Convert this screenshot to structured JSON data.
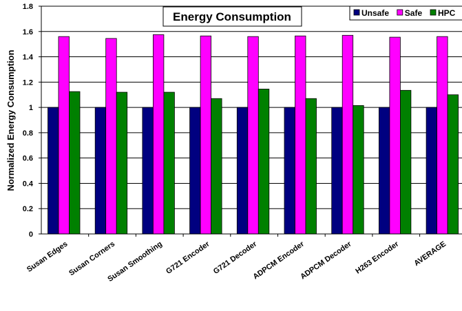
{
  "chart_data": {
    "type": "bar",
    "title": "Energy Consumption",
    "xlabel": "",
    "ylabel": "Normalized Energy Consumption",
    "ylim": [
      0,
      1.8
    ],
    "yticks": [
      "0",
      "0.2",
      "0.4",
      "0.6",
      "0.8",
      "1",
      "1.2",
      "1.4",
      "1.6",
      "1.8"
    ],
    "grid": true,
    "legend_position": "top-right",
    "categories": [
      "Susan Edges",
      "Susan Corners",
      "Susan Smoothing",
      "G721 Encoder",
      "G721 Decoder",
      "ADPCM Encoder",
      "ADPCM Decoder",
      "H263 Encoder",
      "AVERAGE"
    ],
    "series": [
      {
        "name": "Unsafe",
        "color": "#000080",
        "values": [
          1,
          1,
          1,
          1,
          1,
          1,
          1,
          1,
          1
        ]
      },
      {
        "name": "Safe",
        "color": "#ff00ff",
        "values": [
          1.56,
          1.545,
          1.575,
          1.565,
          1.56,
          1.565,
          1.57,
          1.555,
          1.56
        ]
      },
      {
        "name": "HPC",
        "color": "#008000",
        "values": [
          1.125,
          1.12,
          1.12,
          1.07,
          1.145,
          1.07,
          1.015,
          1.135,
          1.1
        ]
      }
    ]
  }
}
